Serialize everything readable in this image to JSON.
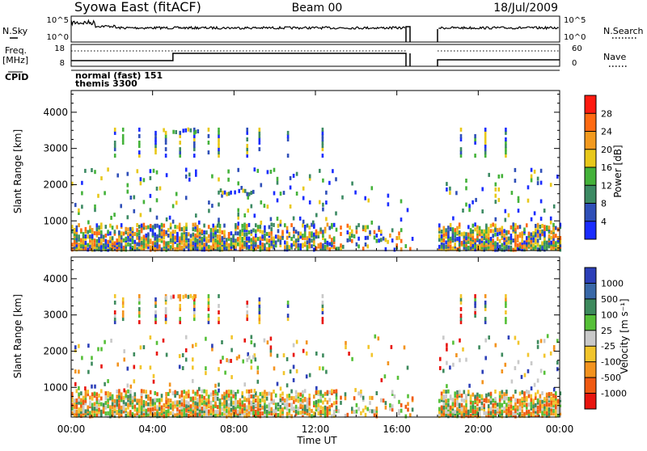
{
  "header": {
    "title": "Syowa East (fitACF)",
    "beam": "Beam 00",
    "date": "18/Jul/2009"
  },
  "summary_panel": {
    "nsky_label": "N.Sky",
    "nsearch_label": "N.Search",
    "freq_label": "Freq.",
    "freq_unit": "[MHz]",
    "nave_label": "Nave",
    "cpid_label": "CPID",
    "left_ticks_top": [
      "10^5",
      "10^0"
    ],
    "right_ticks_top": [
      "10^5",
      "10^0"
    ],
    "left_ticks_mid": [
      "18",
      "8"
    ],
    "right_ticks_mid": [
      "60",
      "0"
    ],
    "cpid_lines": [
      "normal (fast) 151",
      "themis 3300"
    ],
    "data_gap_hours": [
      16.45,
      18.0
    ]
  },
  "x_axis": {
    "label": "Time UT",
    "ticks": [
      "00:00",
      "04:00",
      "08:00",
      "12:00",
      "16:00",
      "20:00",
      "00:00"
    ],
    "tick_hours": [
      0,
      4,
      8,
      12,
      16,
      20,
      24
    ],
    "range_hours": [
      0,
      24
    ]
  },
  "chart_data": [
    {
      "type": "heatmap",
      "name": "power",
      "xlabel": "Time UT",
      "ylabel": "Slant Range [km]",
      "yticks": [
        1000,
        2000,
        3000,
        4000
      ],
      "ylim": [
        180,
        4600
      ],
      "xlim": [
        0,
        24
      ],
      "colorbar_label": "Power [dB]",
      "colorbar_ticks": [
        "4",
        "8",
        "12",
        "16",
        "20",
        "24",
        "28"
      ],
      "colorbar_colors": [
        "#1a2cff",
        "#2f4fb8",
        "#3c8a63",
        "#44b23a",
        "#e8c81a",
        "#f39a1e",
        "#ff6a12",
        "#ff1a10"
      ],
      "gap_hours": [
        16.8,
        18.0
      ]
    },
    {
      "type": "heatmap",
      "name": "velocity",
      "xlabel": "Time UT",
      "ylabel": "Slant Range [km]",
      "yticks": [
        1000,
        2000,
        3000,
        4000
      ],
      "ylim": [
        180,
        4600
      ],
      "xlim": [
        0,
        24
      ],
      "colorbar_label": "Velocity [m s⁻¹]",
      "colorbar_ticks": [
        "1000",
        "500",
        "100",
        "25",
        "-25",
        "-100",
        "-500",
        "-1000"
      ],
      "colorbar_colors": [
        "#2c3fb8",
        "#3968a8",
        "#3d8a5d",
        "#56c038",
        "#c9c9c9",
        "#f2c52c",
        "#f3931e",
        "#f05a12",
        "#e8150f"
      ],
      "gap_hours": [
        16.8,
        18.0
      ]
    }
  ]
}
